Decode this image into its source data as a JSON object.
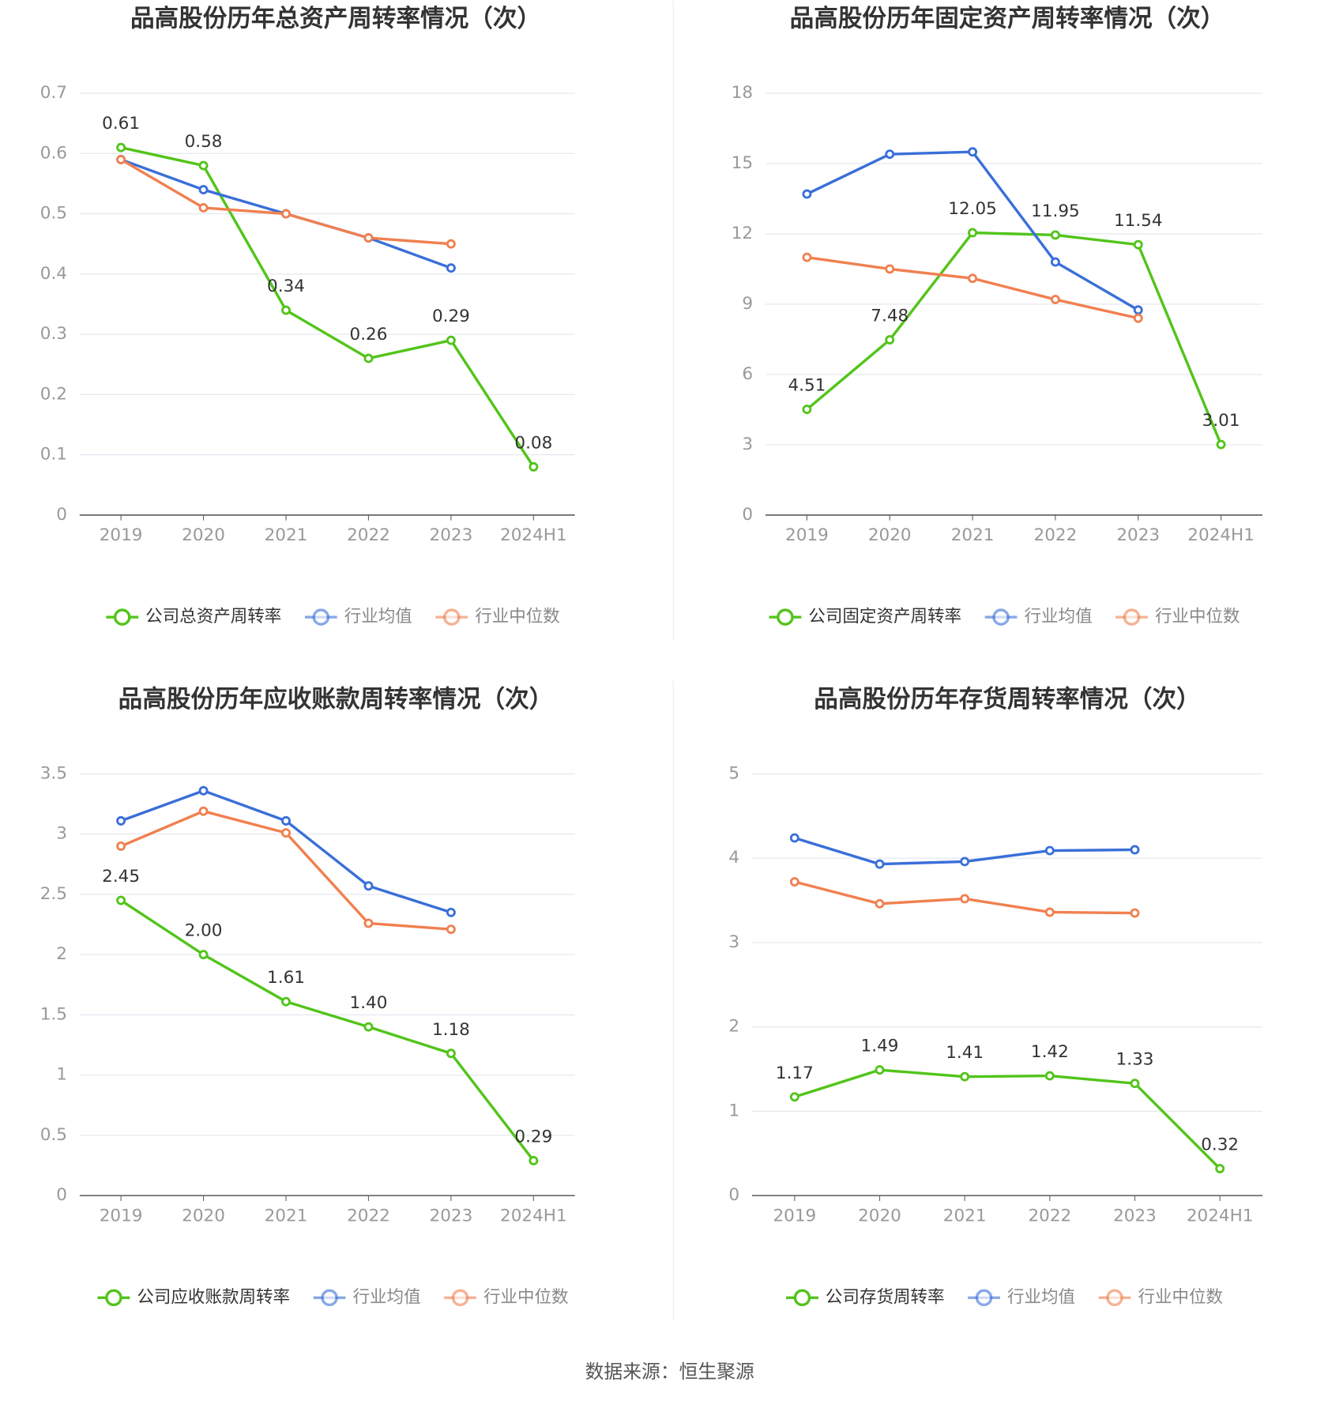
{
  "chart_data": [
    {
      "type": "line",
      "title": "品高股份历年总资产周转率情况（次）",
      "categories": [
        "2019",
        "2020",
        "2021",
        "2022",
        "2023",
        "2024H1"
      ],
      "ylim": [
        0,
        0.7
      ],
      "yticks": [
        0,
        0.1,
        0.2,
        0.3,
        0.4,
        0.5,
        0.6,
        0.7
      ],
      "grid": true,
      "legend": "bottom",
      "series": [
        {
          "name": "公司总资产周转率",
          "color": "#52c41a",
          "values": [
            0.61,
            0.58,
            0.34,
            0.26,
            0.29,
            0.08
          ]
        },
        {
          "name": "行业均值",
          "color": "#3a6fd8",
          "values": [
            0.59,
            0.54,
            0.5,
            0.46,
            0.41,
            null
          ]
        },
        {
          "name": "行业中位数",
          "color": "#f08050",
          "values": [
            0.59,
            0.51,
            0.5,
            0.46,
            0.45,
            null
          ]
        }
      ]
    },
    {
      "type": "line",
      "title": "品高股份历年固定资产周转率情况（次）",
      "categories": [
        "2019",
        "2020",
        "2021",
        "2022",
        "2023",
        "2024H1"
      ],
      "ylim": [
        0,
        18
      ],
      "yticks": [
        0,
        3,
        6,
        9,
        12,
        15,
        18
      ],
      "grid": true,
      "legend": "bottom",
      "series": [
        {
          "name": "公司固定资产周转率",
          "color": "#52c41a",
          "values": [
            4.51,
            7.48,
            12.05,
            11.95,
            11.54,
            3.01
          ]
        },
        {
          "name": "行业均值",
          "color": "#3a6fd8",
          "values": [
            13.7,
            15.4,
            15.5,
            10.8,
            8.75,
            null
          ]
        },
        {
          "name": "行业中位数",
          "color": "#f08050",
          "values": [
            11.0,
            10.5,
            10.1,
            9.2,
            8.4,
            null
          ]
        }
      ]
    },
    {
      "type": "line",
      "title": "品高股份历年应收账款周转率情况（次）",
      "categories": [
        "2019",
        "2020",
        "2021",
        "2022",
        "2023",
        "2024H1"
      ],
      "ylim": [
        0,
        3.5
      ],
      "yticks": [
        0,
        0.5,
        1,
        1.5,
        2,
        2.5,
        3,
        3.5
      ],
      "grid": true,
      "legend": "bottom",
      "series": [
        {
          "name": "公司应收账款周转率",
          "color": "#52c41a",
          "values": [
            2.45,
            2.0,
            1.61,
            1.4,
            1.18,
            0.29
          ],
          "value_labels": [
            "2.45",
            "2.00",
            "1.61",
            "1.40",
            "1.18",
            "0.29"
          ]
        },
        {
          "name": "行业均值",
          "color": "#3a6fd8",
          "values": [
            3.11,
            3.36,
            3.11,
            2.57,
            2.35,
            null
          ]
        },
        {
          "name": "行业中位数",
          "color": "#f08050",
          "values": [
            2.9,
            3.19,
            3.01,
            2.26,
            2.21,
            null
          ]
        }
      ]
    },
    {
      "type": "line",
      "title": "品高股份历年存货周转率情况（次）",
      "categories": [
        "2019",
        "2020",
        "2021",
        "2022",
        "2023",
        "2024H1"
      ],
      "ylim": [
        0,
        5
      ],
      "yticks": [
        0,
        1,
        2,
        3,
        4,
        5
      ],
      "grid": true,
      "legend": "bottom",
      "series": [
        {
          "name": "公司存货周转率",
          "color": "#52c41a",
          "values": [
            1.17,
            1.49,
            1.41,
            1.42,
            1.33,
            0.32
          ]
        },
        {
          "name": "行业均值",
          "color": "#3a6fd8",
          "values": [
            4.24,
            3.93,
            3.96,
            4.09,
            4.1,
            null
          ]
        },
        {
          "name": "行业中位数",
          "color": "#f08050",
          "values": [
            3.72,
            3.46,
            3.52,
            3.36,
            3.35,
            null
          ]
        }
      ]
    }
  ],
  "source": "数据来源：恒生聚源"
}
